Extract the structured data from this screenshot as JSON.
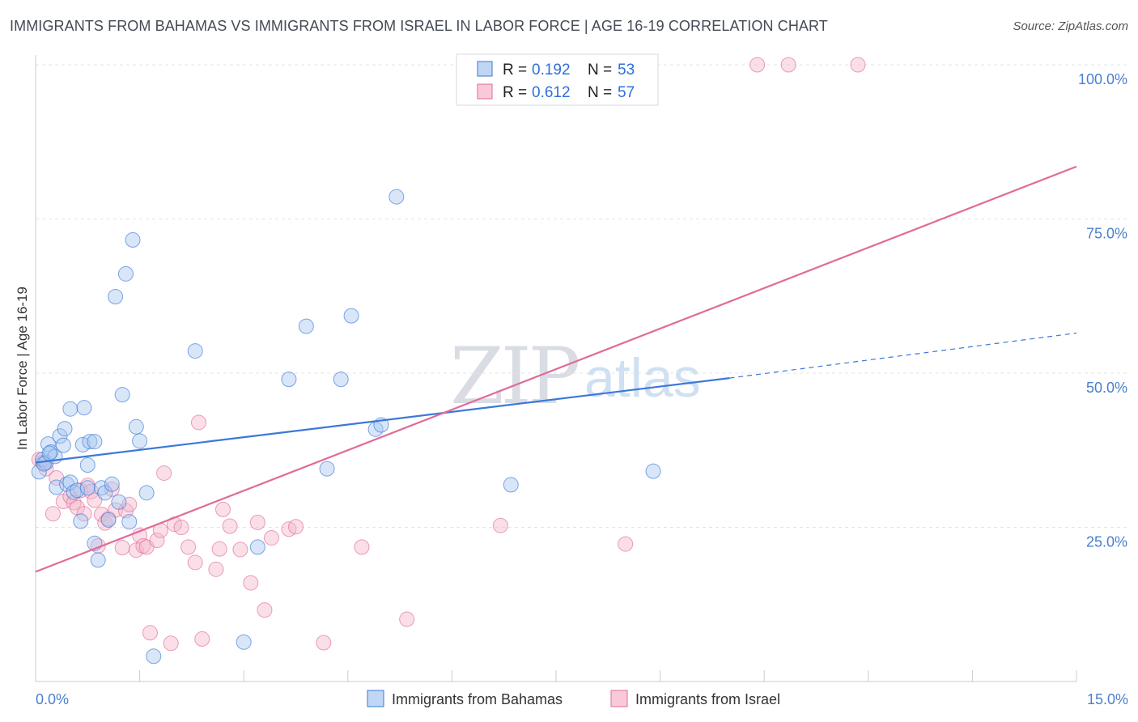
{
  "title": "IMMIGRANTS FROM BAHAMAS VS IMMIGRANTS FROM ISRAEL IN LABOR FORCE | AGE 16-19 CORRELATION CHART",
  "source": "Source: ZipAtlas.com",
  "watermark": {
    "zip": "ZIP",
    "atlas": "atlas"
  },
  "colors": {
    "blue": "#3b78d8",
    "blue_fill": "#a9c8f0",
    "pink": "#e06b98",
    "pink_fill": "#f5b8cc",
    "tick": "#4a7fd0"
  },
  "legend": {
    "rows": [
      {
        "r_label": "R = ",
        "r_value": "0.192",
        "n_label": "N = ",
        "n_value": "53"
      },
      {
        "r_label": "R = ",
        "r_value": "0.612",
        "n_label": "N = ",
        "n_value": "57"
      }
    ]
  },
  "chart_data": {
    "type": "scatter",
    "title": "IMMIGRANTS FROM BAHAMAS VS IMMIGRANTS FROM ISRAEL IN LABOR FORCE | AGE 16-19 CORRELATION CHART",
    "xlabel": "",
    "ylabel": "In Labor Force | Age 16-19",
    "xlim": [
      0,
      15
    ],
    "ylim": [
      0,
      100
    ],
    "x_tick_labels": [
      "0.0%",
      "15.0%"
    ],
    "y_ticks": [
      25,
      50,
      75,
      100
    ],
    "y_tick_labels": [
      "25.0%",
      "50.0%",
      "75.0%",
      "100.0%"
    ],
    "grid": true,
    "legend_position": "top-center",
    "series": [
      {
        "name": "Immigrants from Bahamas",
        "color": "#3b78d8",
        "R": 0.192,
        "N": 53,
        "trend": {
          "x": [
            0,
            10
          ],
          "y": [
            35.5,
            49.2
          ],
          "dashed_to": [
            15,
            56.5
          ]
        },
        "points": [
          {
            "x": 0.05,
            "y": 34.0
          },
          {
            "x": 0.1,
            "y": 36.0
          },
          {
            "x": 0.15,
            "y": 35.5
          },
          {
            "x": 0.18,
            "y": 38.5
          },
          {
            "x": 0.22,
            "y": 37.2
          },
          {
            "x": 0.28,
            "y": 36.5
          },
          {
            "x": 0.3,
            "y": 31.5
          },
          {
            "x": 0.35,
            "y": 39.8
          },
          {
            "x": 0.4,
            "y": 38.3
          },
          {
            "x": 0.42,
            "y": 41.0
          },
          {
            "x": 0.45,
            "y": 32.0
          },
          {
            "x": 0.5,
            "y": 32.3
          },
          {
            "x": 0.55,
            "y": 30.7
          },
          {
            "x": 0.6,
            "y": 31.0
          },
          {
            "x": 0.5,
            "y": 44.2
          },
          {
            "x": 0.7,
            "y": 44.4
          },
          {
            "x": 0.65,
            "y": 26.0
          },
          {
            "x": 0.68,
            "y": 38.4
          },
          {
            "x": 0.75,
            "y": 31.4
          },
          {
            "x": 0.75,
            "y": 35.1
          },
          {
            "x": 0.78,
            "y": 38.9
          },
          {
            "x": 0.85,
            "y": 22.4
          },
          {
            "x": 0.85,
            "y": 38.9
          },
          {
            "x": 0.9,
            "y": 19.7
          },
          {
            "x": 0.95,
            "y": 31.4
          },
          {
            "x": 1.0,
            "y": 30.6
          },
          {
            "x": 1.05,
            "y": 26.2
          },
          {
            "x": 1.1,
            "y": 32.0
          },
          {
            "x": 1.15,
            "y": 62.4
          },
          {
            "x": 1.2,
            "y": 29.1
          },
          {
            "x": 1.25,
            "y": 46.5
          },
          {
            "x": 1.3,
            "y": 66.1
          },
          {
            "x": 1.35,
            "y": 25.9
          },
          {
            "x": 1.4,
            "y": 71.6
          },
          {
            "x": 1.45,
            "y": 41.3
          },
          {
            "x": 1.5,
            "y": 39.0
          },
          {
            "x": 1.6,
            "y": 30.6
          },
          {
            "x": 1.7,
            "y": 4.1
          },
          {
            "x": 2.3,
            "y": 53.6
          },
          {
            "x": 3.0,
            "y": 6.4
          },
          {
            "x": 3.2,
            "y": 21.8
          },
          {
            "x": 3.65,
            "y": 49.0
          },
          {
            "x": 3.9,
            "y": 57.6
          },
          {
            "x": 4.2,
            "y": 34.5
          },
          {
            "x": 4.4,
            "y": 49.0
          },
          {
            "x": 4.55,
            "y": 59.3
          },
          {
            "x": 4.9,
            "y": 40.9
          },
          {
            "x": 4.98,
            "y": 41.6
          },
          {
            "x": 5.2,
            "y": 78.6
          },
          {
            "x": 6.85,
            "y": 31.9
          },
          {
            "x": 8.9,
            "y": 34.1
          },
          {
            "x": 0.12,
            "y": 35.3
          },
          {
            "x": 0.2,
            "y": 37.0
          }
        ]
      },
      {
        "name": "Immigrants from Israel",
        "color": "#e06b98",
        "R": 0.612,
        "N": 57,
        "trend": {
          "x": [
            0,
            15
          ],
          "y": [
            17.8,
            83.5
          ]
        },
        "points": [
          {
            "x": 0.05,
            "y": 36.0
          },
          {
            "x": 0.1,
            "y": 35.5
          },
          {
            "x": 0.15,
            "y": 34.5
          },
          {
            "x": 0.25,
            "y": 27.2
          },
          {
            "x": 0.3,
            "y": 33.0
          },
          {
            "x": 0.4,
            "y": 29.2
          },
          {
            "x": 0.5,
            "y": 30.0
          },
          {
            "x": 0.55,
            "y": 29.0
          },
          {
            "x": 0.6,
            "y": 28.2
          },
          {
            "x": 0.65,
            "y": 31.0
          },
          {
            "x": 0.7,
            "y": 27.2
          },
          {
            "x": 0.75,
            "y": 31.8
          },
          {
            "x": 0.8,
            "y": 30.8
          },
          {
            "x": 0.85,
            "y": 29.4
          },
          {
            "x": 0.9,
            "y": 22.0
          },
          {
            "x": 0.95,
            "y": 27.1
          },
          {
            "x": 1.0,
            "y": 25.7
          },
          {
            "x": 1.05,
            "y": 26.4
          },
          {
            "x": 1.1,
            "y": 31.2
          },
          {
            "x": 1.15,
            "y": 27.8
          },
          {
            "x": 1.25,
            "y": 21.7
          },
          {
            "x": 1.3,
            "y": 27.7
          },
          {
            "x": 1.35,
            "y": 28.7
          },
          {
            "x": 1.45,
            "y": 21.3
          },
          {
            "x": 1.5,
            "y": 23.7
          },
          {
            "x": 1.55,
            "y": 22.0
          },
          {
            "x": 1.6,
            "y": 21.8
          },
          {
            "x": 1.65,
            "y": 7.9
          },
          {
            "x": 1.75,
            "y": 22.9
          },
          {
            "x": 1.8,
            "y": 24.5
          },
          {
            "x": 1.85,
            "y": 33.8
          },
          {
            "x": 1.95,
            "y": 6.2
          },
          {
            "x": 2.0,
            "y": 25.5
          },
          {
            "x": 2.1,
            "y": 25.0
          },
          {
            "x": 2.2,
            "y": 21.8
          },
          {
            "x": 2.3,
            "y": 19.3
          },
          {
            "x": 2.35,
            "y": 42.0
          },
          {
            "x": 2.4,
            "y": 6.9
          },
          {
            "x": 2.6,
            "y": 18.2
          },
          {
            "x": 2.65,
            "y": 21.5
          },
          {
            "x": 2.7,
            "y": 27.9
          },
          {
            "x": 2.8,
            "y": 25.2
          },
          {
            "x": 2.95,
            "y": 21.4
          },
          {
            "x": 3.1,
            "y": 16.0
          },
          {
            "x": 3.2,
            "y": 25.8
          },
          {
            "x": 3.3,
            "y": 11.6
          },
          {
            "x": 3.4,
            "y": 23.3
          },
          {
            "x": 3.65,
            "y": 24.7
          },
          {
            "x": 3.75,
            "y": 25.1
          },
          {
            "x": 4.15,
            "y": 6.3
          },
          {
            "x": 4.7,
            "y": 21.8
          },
          {
            "x": 5.35,
            "y": 10.1
          },
          {
            "x": 6.7,
            "y": 25.3
          },
          {
            "x": 8.5,
            "y": 22.3
          },
          {
            "x": 10.4,
            "y": 100.0
          },
          {
            "x": 10.85,
            "y": 100.0
          },
          {
            "x": 11.85,
            "y": 100.0
          }
        ]
      }
    ]
  }
}
